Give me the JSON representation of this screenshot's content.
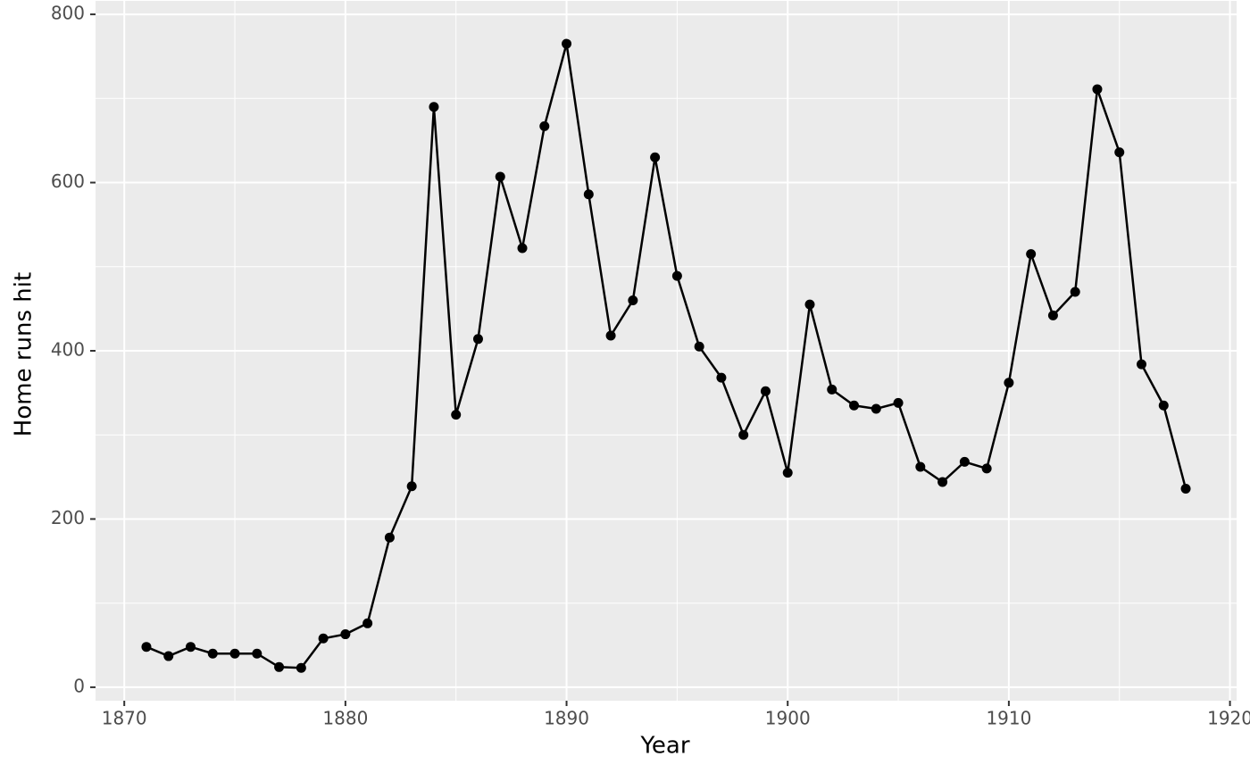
{
  "chart_data": {
    "type": "line",
    "x_label": "Year",
    "y_label": "Home runs hit",
    "series": [
      {
        "name": "Home runs hit",
        "color": "#000000",
        "x": [
          1871,
          1872,
          1873,
          1874,
          1875,
          1876,
          1877,
          1878,
          1879,
          1880,
          1881,
          1882,
          1883,
          1884,
          1885,
          1886,
          1887,
          1888,
          1889,
          1890,
          1891,
          1892,
          1893,
          1894,
          1895,
          1896,
          1897,
          1898,
          1899,
          1900,
          1901,
          1902,
          1903,
          1904,
          1905,
          1906,
          1907,
          1908,
          1909,
          1910,
          1911,
          1912,
          1913,
          1914,
          1915,
          1916,
          1917,
          1918
        ],
        "values": [
          48,
          37,
          48,
          40,
          40,
          40,
          24,
          23,
          58,
          63,
          76,
          178,
          239,
          690,
          324,
          414,
          607,
          522,
          667,
          765,
          586,
          418,
          460,
          630,
          489,
          405,
          368,
          300,
          352,
          255,
          455,
          354,
          335,
          331,
          338,
          262,
          244,
          268,
          260,
          362,
          515,
          442,
          470,
          711,
          636,
          384,
          335,
          236
        ]
      }
    ],
    "xlim": [
      1868.7,
      1920.3
    ],
    "xticks": [
      1870,
      1880,
      1890,
      1900,
      1910,
      1920
    ],
    "ylim": [
      -16,
      816
    ],
    "yticks": [
      0,
      200,
      400,
      600,
      800
    ],
    "grid": true
  }
}
